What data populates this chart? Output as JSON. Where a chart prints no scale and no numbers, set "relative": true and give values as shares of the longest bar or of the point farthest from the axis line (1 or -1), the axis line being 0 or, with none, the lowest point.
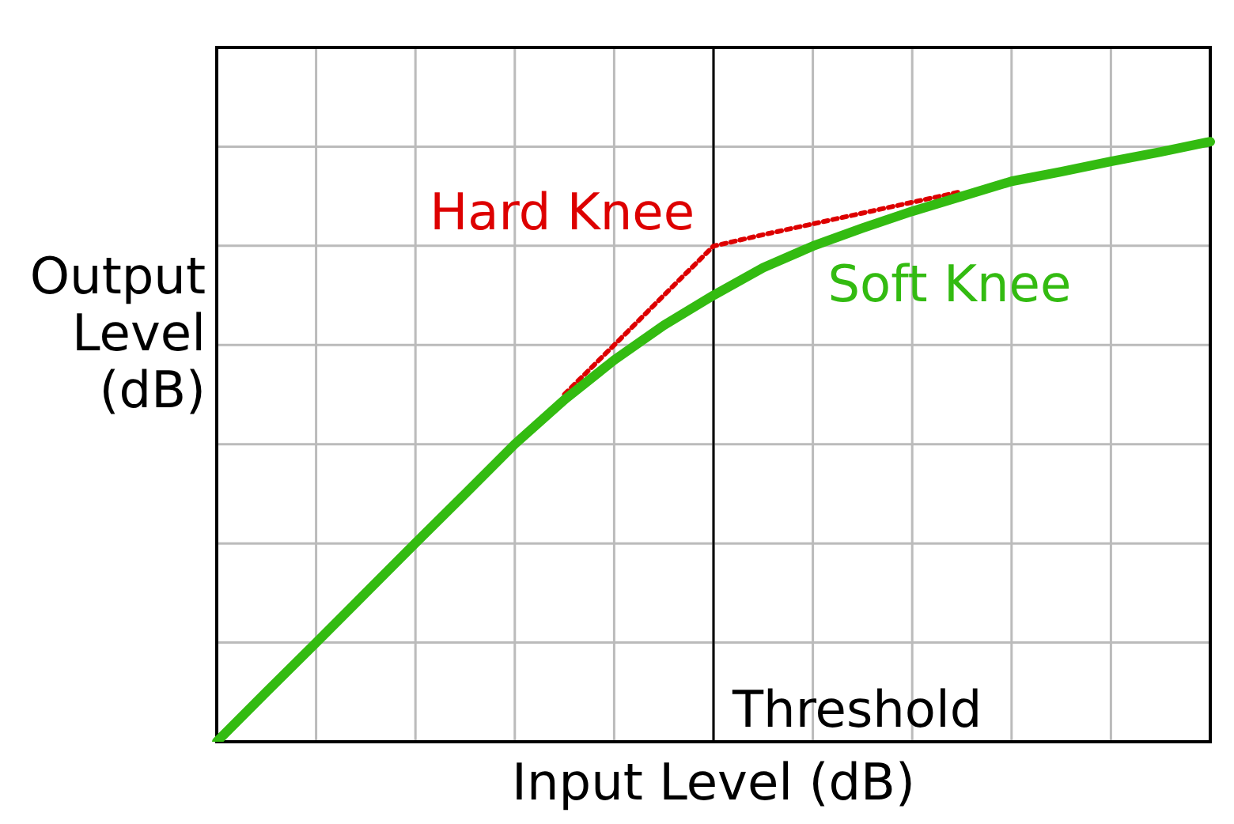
{
  "chart_data": {
    "type": "line",
    "relative": true,
    "xlabel": "Input Level (dB)",
    "ylabel": "Output Level (dB)",
    "categories": [
      null,
      null,
      null,
      null,
      null,
      null,
      null,
      null,
      null,
      null,
      null,
      null,
      null,
      null,
      null,
      null,
      null,
      null,
      null,
      null,
      null
    ],
    "series": [
      {
        "name": "Soft Knee",
        "color": "#33bb11",
        "line_style": "solid",
        "values": [
          0,
          0.083,
          0.165,
          0.248,
          0.331,
          0.413,
          0.496,
          0.57,
          0.636,
          0.694,
          0.744,
          0.79,
          0.826,
          0.856,
          0.884,
          0.909,
          0.934,
          0.95,
          0.967,
          0.983,
          1
        ]
      },
      {
        "name": "Hard Knee",
        "color": "#dd0000",
        "line_style": "dotted",
        "values": [
          null,
          null,
          null,
          null,
          null,
          null,
          null,
          0.579,
          0.661,
          0.744,
          0.826,
          0.845,
          0.863,
          0.881,
          0.899,
          0.917,
          null,
          null,
          null,
          null,
          null
        ]
      }
    ],
    "annotations": [
      "Threshold"
    ],
    "grid": true,
    "legend": false,
    "marker": "none"
  }
}
